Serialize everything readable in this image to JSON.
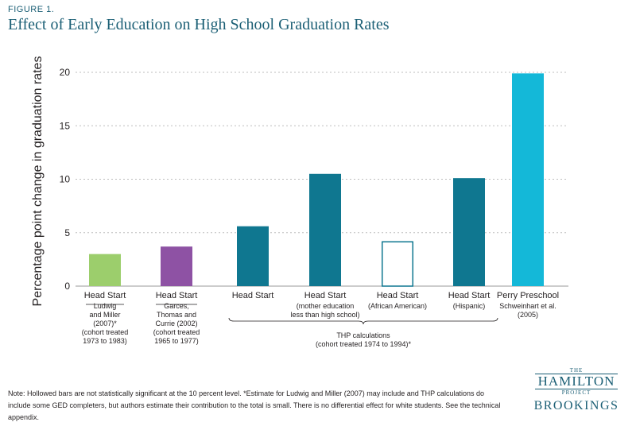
{
  "figure_label": "FIGURE 1.",
  "title": "Effect of Early Education on High School Graduation Rates",
  "note": "Note: Hollowed bars are not statistically significant at the 10 percent level. *Estimate for Ludwig and Miller (2007) may include and THP calculations do include some GED completers, but authors estimate their contribution to the total is small. There is no differential effect for white students. See the technical appendix.",
  "logo": {
    "the": "THE",
    "hamilton": "HAMILTON",
    "project": "PROJECT",
    "brookings": "BROOKINGS"
  },
  "chart_data": {
    "type": "bar",
    "ylabel": "Percentage point change in graduation rates",
    "ylim": [
      0,
      20
    ],
    "yticks": [
      0,
      5,
      10,
      15,
      20
    ],
    "grid": "dashed horizontal",
    "categories": [
      {
        "label": "Head Start",
        "sub": [
          "Ludwig",
          "and Miller",
          "(2007)*",
          "(cohort treated",
          "1973 to 1983)"
        ],
        "value": 3.0,
        "color": "#9cce6c",
        "hollow": false
      },
      {
        "label": "Head Start",
        "sub": [
          "Garces,",
          "Thomas and",
          "Currie (2002)",
          "(cohort treated",
          "1965 to 1977)"
        ],
        "value": 3.7,
        "color": "#8e52a4",
        "hollow": false
      },
      {
        "label": "Head Start",
        "sub": [],
        "value": 5.6,
        "color": "#0f7790",
        "hollow": false
      },
      {
        "label": "Head Start",
        "sub": [
          "(mother education",
          "less than high school)"
        ],
        "value": 10.5,
        "color": "#0f7790",
        "hollow": false
      },
      {
        "label": "Head Start",
        "sub": [
          "(African American)"
        ],
        "value": 4.2,
        "color": "#0f7790",
        "hollow": true
      },
      {
        "label": "Head Start",
        "sub": [
          "(Hispanic)"
        ],
        "value": 10.1,
        "color": "#0f7790",
        "hollow": false
      },
      {
        "label": "Perry Preschool",
        "sub": [
          "Schweinhart et al.",
          "(2005)"
        ],
        "value": 19.9,
        "color": "#14b8d8",
        "hollow": false
      }
    ],
    "group_label": [
      "THP calculations",
      "(cohort treated 1974 to 1994)*"
    ]
  }
}
